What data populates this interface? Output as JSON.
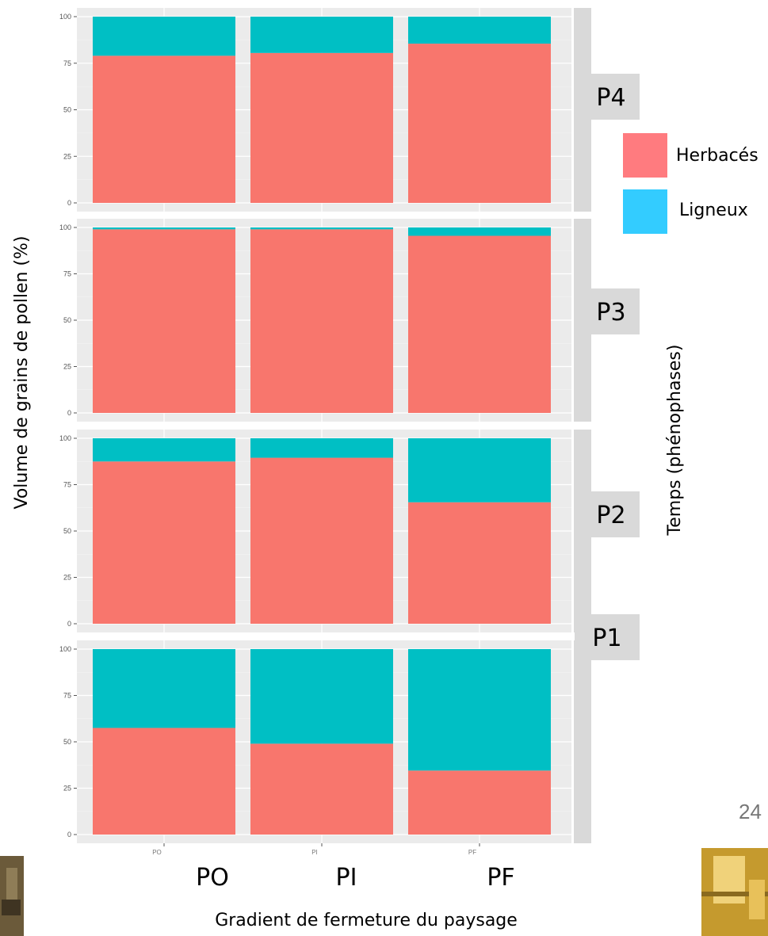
{
  "page_number": "24",
  "chart_data": {
    "type": "bar",
    "stacked": true,
    "categories": [
      "PO",
      "PI",
      "PF"
    ],
    "category_labels_large": [
      "PO",
      "PI",
      "PF"
    ],
    "xlabel": "Gradient de fermeture du paysage",
    "ylabel": "Volume de grains de pollen (%)",
    "facet_title": "Temps (phénophases)",
    "ylim": [
      0,
      100
    ],
    "yticks": [
      0,
      25,
      50,
      75,
      100
    ],
    "grid": true,
    "legend": {
      "placement": "right",
      "entries": [
        {
          "name": "Herbacés",
          "color": "#f8766d"
        },
        {
          "name": "Ligneux",
          "color": "#00bfc4"
        }
      ]
    },
    "series_colors": {
      "herb": "#f8766d",
      "lign": "#00bfc4"
    },
    "panel_bg": "#ebebeb",
    "strip_bg": "#d9d9d9",
    "facets": [
      {
        "label": "P4",
        "herb": [
          79,
          80.5,
          85.5
        ],
        "lign": [
          21,
          19.5,
          14.5
        ]
      },
      {
        "label": "P3",
        "herb": [
          99,
          99,
          95.5
        ],
        "lign": [
          1,
          1,
          4.5
        ]
      },
      {
        "label": "P2",
        "herb": [
          87.5,
          89.5,
          65.5
        ],
        "lign": [
          12.5,
          10.5,
          34.5
        ]
      },
      {
        "label": "P1",
        "herb": [
          57.5,
          49,
          34.5
        ],
        "lign": [
          42.5,
          51,
          65.5
        ]
      }
    ]
  }
}
